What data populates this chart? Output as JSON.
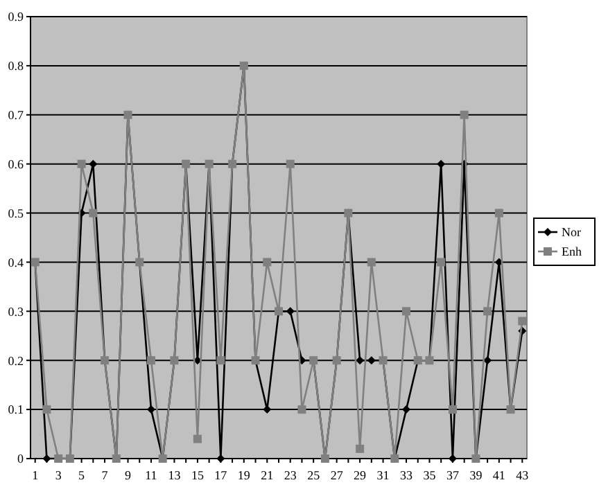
{
  "chart_data": {
    "type": "line",
    "x": [
      1,
      2,
      3,
      4,
      5,
      6,
      7,
      8,
      9,
      10,
      11,
      12,
      13,
      14,
      15,
      16,
      17,
      18,
      19,
      20,
      21,
      22,
      23,
      24,
      25,
      26,
      27,
      28,
      29,
      30,
      31,
      32,
      33,
      34,
      35,
      36,
      37,
      38,
      39,
      40,
      41,
      42,
      43
    ],
    "series": [
      {
        "name": "Nor",
        "color": "#000000",
        "marker": "diamond",
        "values": [
          0.4,
          0,
          0,
          0,
          0.5,
          0.6,
          0.2,
          0,
          0.7,
          0.4,
          0.1,
          0,
          0.2,
          0.6,
          0.2,
          0.6,
          0,
          0.6,
          0.8,
          0.2,
          0.1,
          0.3,
          0.3,
          0.2,
          0.2,
          0,
          0.2,
          0.5,
          0.2,
          0.2,
          0.2,
          0,
          0.1,
          0.2,
          0.2,
          0.6,
          0,
          0.6,
          0,
          0.2,
          0.4,
          0.1,
          0.26
        ]
      },
      {
        "name": "Enh",
        "color": "#808080",
        "marker": "square",
        "values": [
          0.4,
          0.1,
          0,
          0,
          0.6,
          0.5,
          0.2,
          0,
          0.7,
          0.4,
          0.2,
          0,
          0.2,
          0.6,
          0.04,
          0.6,
          0.2,
          0.6,
          0.8,
          0.2,
          0.4,
          0.3,
          0.6,
          0.1,
          0.2,
          0,
          0.2,
          0.5,
          0.02,
          0.4,
          0.2,
          0,
          0.3,
          0.2,
          0.2,
          0.4,
          0.1,
          0.7,
          0,
          0.3,
          0.5,
          0.1,
          0.28
        ]
      }
    ],
    "xlim": [
      0.6,
      43.4
    ],
    "xticks": [
      1,
      {
        "value": 2,
        "label": null
      },
      3,
      {
        "value": 4,
        "label": null
      },
      5,
      {
        "value": 6,
        "label": null
      },
      7,
      {
        "value": 8,
        "label": null
      },
      9,
      {
        "value": 10,
        "label": null
      },
      11,
      {
        "value": 12,
        "label": null
      },
      13,
      {
        "value": 14,
        "label": null
      },
      15,
      {
        "value": 16,
        "label": null
      },
      17,
      {
        "value": 18,
        "label": null
      },
      19,
      {
        "value": 20,
        "label": null
      },
      21,
      {
        "value": 22,
        "label": null
      },
      23,
      {
        "value": 24,
        "label": null
      },
      25,
      {
        "value": 26,
        "label": null
      },
      27,
      {
        "value": 28,
        "label": null
      },
      29,
      {
        "value": 30,
        "label": null
      },
      31,
      {
        "value": 32,
        "label": null
      },
      33,
      {
        "value": 34,
        "label": null
      },
      35,
      {
        "value": 36,
        "label": null
      },
      37,
      {
        "value": 38,
        "label": null
      },
      39,
      {
        "value": 40,
        "label": null
      },
      41,
      {
        "value": 42,
        "label": null
      },
      43
    ],
    "ylim": [
      0,
      0.9
    ],
    "yticks": [
      0,
      0.1,
      0.2,
      0.3,
      0.4,
      0.5,
      0.6,
      0.7,
      0.8,
      0.9
    ],
    "grid": "y",
    "legend": "right",
    "line_style": "solid"
  }
}
